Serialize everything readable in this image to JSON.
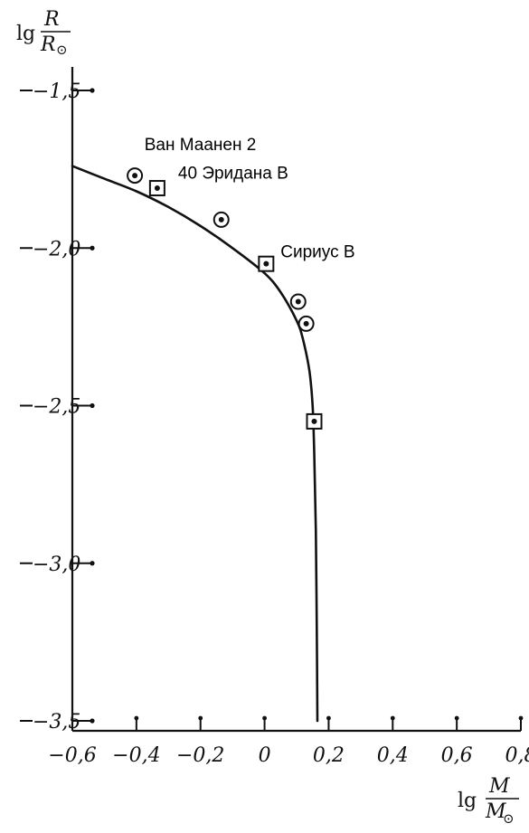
{
  "chart_data": {
    "type": "scatter",
    "title": "",
    "xlabel": {
      "prefix": "lg",
      "num": "M",
      "den": "M",
      "sub": "⊙"
    },
    "ylabel": {
      "prefix": "lg",
      "num": "R",
      "den": "R",
      "sub": "⊙"
    },
    "xlim": [
      -0.6,
      0.8
    ],
    "ylim": [
      -3.5,
      -1.25
    ],
    "x_ticks": [
      -0.6,
      -0.4,
      -0.2,
      0,
      0.2,
      0.4,
      0.6,
      0.8
    ],
    "x_tick_labels": [
      "−0,6",
      "−0,4",
      "−0,2",
      "0",
      "0,2",
      "0,4",
      "0,6",
      "0,8"
    ],
    "y_ticks": [
      -1.5,
      -2.0,
      -2.5,
      -3.0,
      -3.5
    ],
    "y_tick_labels": [
      "−1,5",
      "−2,0",
      "−2,5",
      "−3,0",
      "−3,5"
    ],
    "grid": false,
    "legend": "none",
    "curve": {
      "x": [
        -0.6,
        -0.5,
        -0.4,
        -0.3,
        -0.2,
        -0.1,
        0.0,
        0.05,
        0.1,
        0.12,
        0.14,
        0.15,
        0.155,
        0.16,
        0.163,
        0.165
      ],
      "y": [
        -1.74,
        -1.78,
        -1.82,
        -1.87,
        -1.93,
        -2.0,
        -2.08,
        -2.14,
        -2.23,
        -2.29,
        -2.39,
        -2.5,
        -2.65,
        -2.9,
        -3.2,
        -3.5
      ]
    },
    "points": [
      {
        "x": -0.405,
        "y": -1.77,
        "marker": "circle"
      },
      {
        "x": -0.335,
        "y": -1.81,
        "marker": "square"
      },
      {
        "x": -0.135,
        "y": -1.91,
        "marker": "circle"
      },
      {
        "x": 0.005,
        "y": -2.05,
        "marker": "square"
      },
      {
        "x": 0.105,
        "y": -2.17,
        "marker": "circle"
      },
      {
        "x": 0.13,
        "y": -2.24,
        "marker": "circle"
      },
      {
        "x": 0.155,
        "y": -2.55,
        "marker": "square"
      }
    ],
    "annotations": [
      {
        "text": "Ван Маанен 2",
        "x": -0.375,
        "y": -1.69
      },
      {
        "text": "40 Эридана В",
        "x": -0.27,
        "y": -1.78
      },
      {
        "text": "Сириус В",
        "x": 0.05,
        "y": -2.03
      }
    ]
  }
}
